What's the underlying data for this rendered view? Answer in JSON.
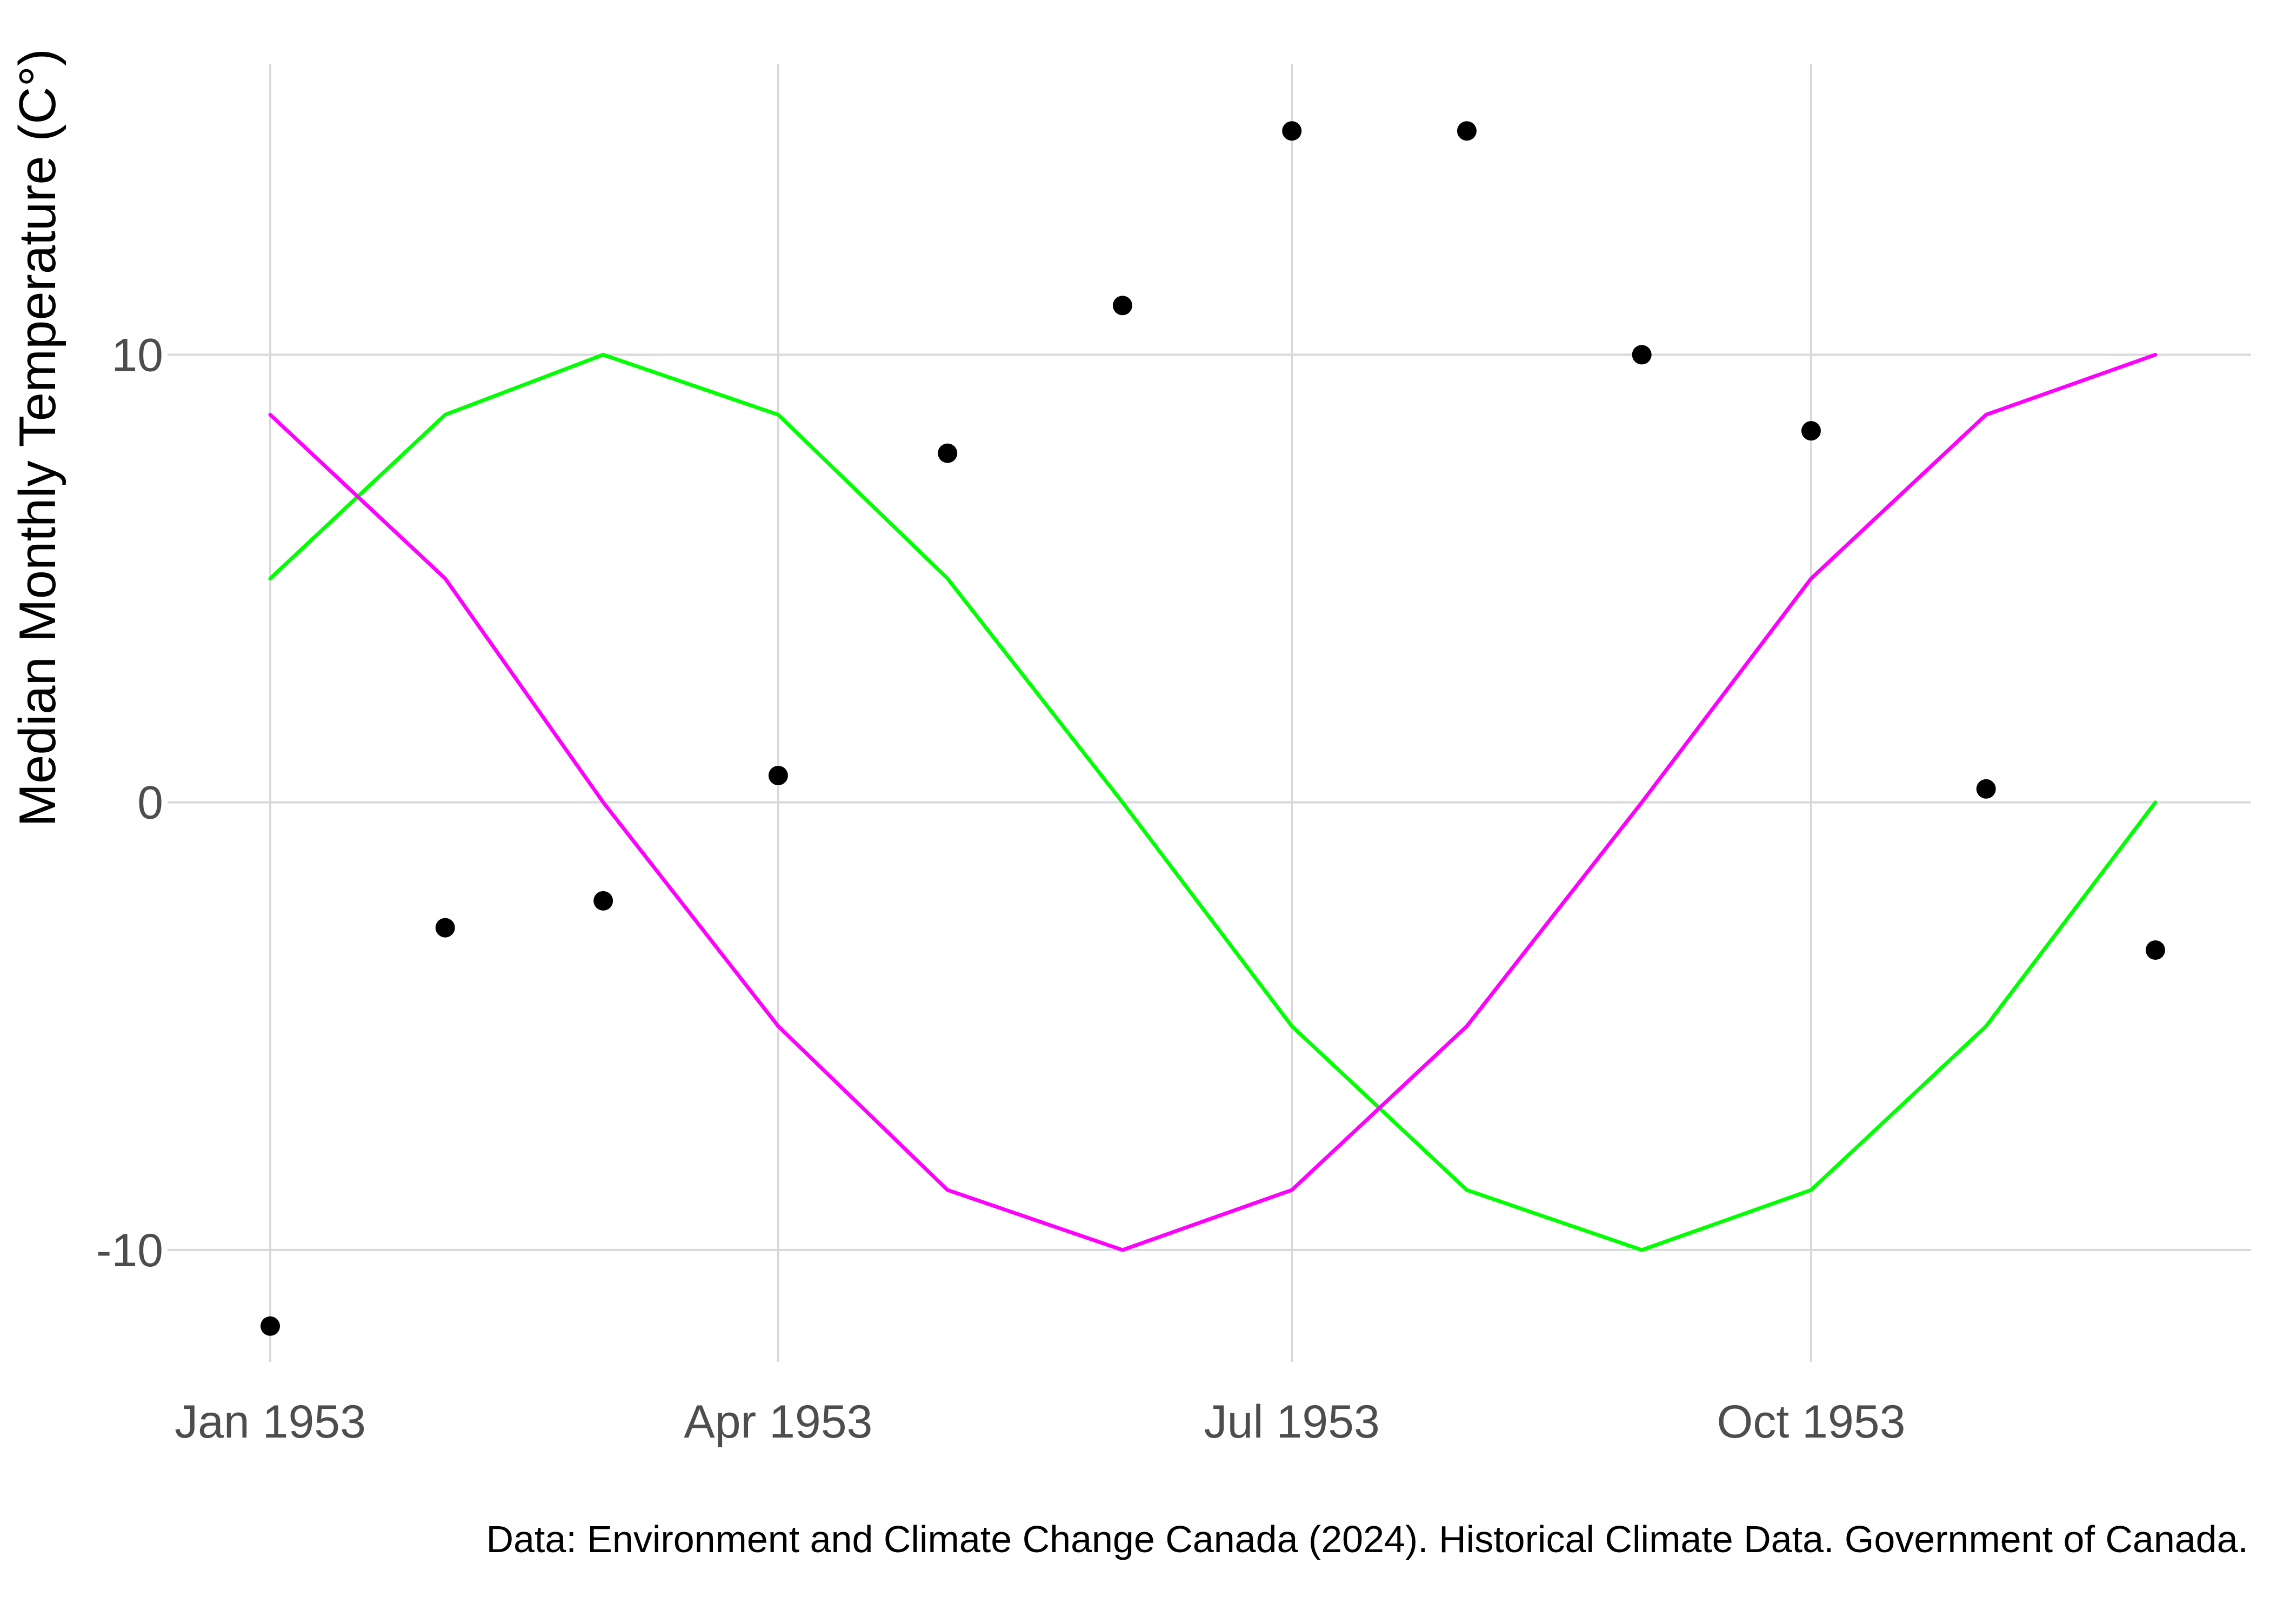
{
  "chart_data": {
    "type": "line",
    "ylabel": "Median Monthly Temperature (C°)",
    "xlabel": "",
    "caption": "Data: Environment and Climate Change Canada (2024). Historical Climate Data. Government of Canada.",
    "x": [
      "1953-01-01",
      "1953-02-01",
      "1953-03-01",
      "1953-04-01",
      "1953-05-01",
      "1953-06-01",
      "1953-07-01",
      "1953-08-01",
      "1953-09-01",
      "1953-10-01",
      "1953-11-01",
      "1953-12-01"
    ],
    "xlim": [
      "1953-01-01",
      "1953-12-01"
    ],
    "ylim": [
      -12.5,
      16.5
    ],
    "x_ticks": [
      {
        "value": "1953-01-01",
        "label": "Jan 1953"
      },
      {
        "value": "1953-04-01",
        "label": "Apr 1953"
      },
      {
        "value": "1953-07-01",
        "label": "Jul 1953"
      },
      {
        "value": "1953-10-01",
        "label": "Oct 1953"
      }
    ],
    "y_ticks": [
      {
        "value": -10,
        "label": "-10"
      },
      {
        "value": 0,
        "label": "0"
      },
      {
        "value": 10,
        "label": "10"
      }
    ],
    "grid": true,
    "series": [
      {
        "type": "scatter",
        "color": "#000000",
        "values": [
          -11.7,
          -2.8,
          -2.2,
          0.6,
          7.8,
          11.1,
          15.0,
          15.0,
          10.0,
          8.3,
          0.3,
          -3.3
        ]
      },
      {
        "type": "line",
        "color": "#00ff00",
        "values": [
          5.0,
          8.66,
          10.0,
          8.66,
          5.0,
          0.0,
          -5.0,
          -8.66,
          -10.0,
          -8.66,
          -5.0,
          0.0
        ]
      },
      {
        "type": "line",
        "color": "#ff00ff",
        "values": [
          8.66,
          5.0,
          0.0,
          -5.0,
          -8.66,
          -10.0,
          -8.66,
          -5.0,
          0.0,
          5.0,
          8.66,
          10.0
        ]
      }
    ]
  }
}
